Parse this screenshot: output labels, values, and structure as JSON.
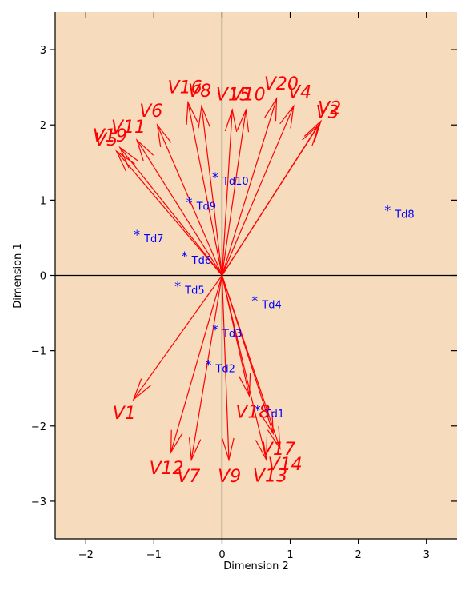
{
  "chart_data": {
    "type": "scatter",
    "xlabel": "Dimension 2",
    "ylabel": "Dimension 1",
    "xlim": [
      -2.45,
      3.45
    ],
    "ylim": [
      -3.5,
      3.5
    ],
    "xticks": [
      -2,
      -1,
      0,
      1,
      2,
      3
    ],
    "yticks": [
      -3,
      -2,
      -1,
      0,
      1,
      2,
      3
    ],
    "xtick_labels": [
      "−2",
      "−1",
      "0",
      "1",
      "2",
      "3"
    ],
    "ytick_labels": [
      "−3",
      "−2",
      "−1",
      "0",
      "1",
      "2",
      "3"
    ],
    "origin_lines": true,
    "colors": {
      "panel": "#f6dcbd",
      "variables": "#ff0000",
      "observations": "#0000ff",
      "axes": "#000000"
    },
    "variables": [
      {
        "label": "V1",
        "x": -1.3,
        "y": -1.65
      },
      {
        "label": "V2",
        "x": 1.45,
        "y": 2.05
      },
      {
        "label": "V3",
        "x": 1.42,
        "y": 2.0
      },
      {
        "label": "V4",
        "x": 1.05,
        "y": 2.25
      },
      {
        "label": "V5",
        "x": -1.55,
        "y": 1.65
      },
      {
        "label": "V6",
        "x": -0.95,
        "y": 2.0
      },
      {
        "label": "V7",
        "x": -0.45,
        "y": -2.45
      },
      {
        "label": "V8",
        "x": -0.3,
        "y": 2.25
      },
      {
        "label": "V9",
        "x": 0.1,
        "y": -2.45
      },
      {
        "label": "V10",
        "x": 0.35,
        "y": 2.2
      },
      {
        "label": "V11",
        "x": -1.25,
        "y": 1.8
      },
      {
        "label": "V12",
        "x": -0.75,
        "y": -2.35
      },
      {
        "label": "V13",
        "x": 0.65,
        "y": -2.45
      },
      {
        "label": "V14",
        "x": 0.85,
        "y": -2.3
      },
      {
        "label": "V15",
        "x": 0.15,
        "y": 2.2
      },
      {
        "label": "V16",
        "x": -0.5,
        "y": 2.3
      },
      {
        "label": "V17",
        "x": 0.75,
        "y": -2.1
      },
      {
        "label": "V18",
        "x": 0.4,
        "y": -1.6
      },
      {
        "label": "V19",
        "x": -1.5,
        "y": 1.7
      },
      {
        "label": "V20",
        "x": 0.8,
        "y": 2.35
      }
    ],
    "observations": [
      {
        "label": "Td1",
        "x": 0.52,
        "y": -1.77
      },
      {
        "label": "Td2",
        "x": -0.2,
        "y": -1.17
      },
      {
        "label": "Td3",
        "x": -0.1,
        "y": -0.7
      },
      {
        "label": "Td4",
        "x": 0.48,
        "y": -0.32
      },
      {
        "label": "Td5",
        "x": -0.65,
        "y": -0.13
      },
      {
        "label": "Td6",
        "x": -0.55,
        "y": 0.27
      },
      {
        "label": "Td7",
        "x": -1.25,
        "y": 0.56
      },
      {
        "label": "Td8",
        "x": 2.43,
        "y": 0.88
      },
      {
        "label": "Td9",
        "x": -0.48,
        "y": 0.99
      },
      {
        "label": "Td10",
        "x": -0.1,
        "y": 1.32
      }
    ]
  }
}
